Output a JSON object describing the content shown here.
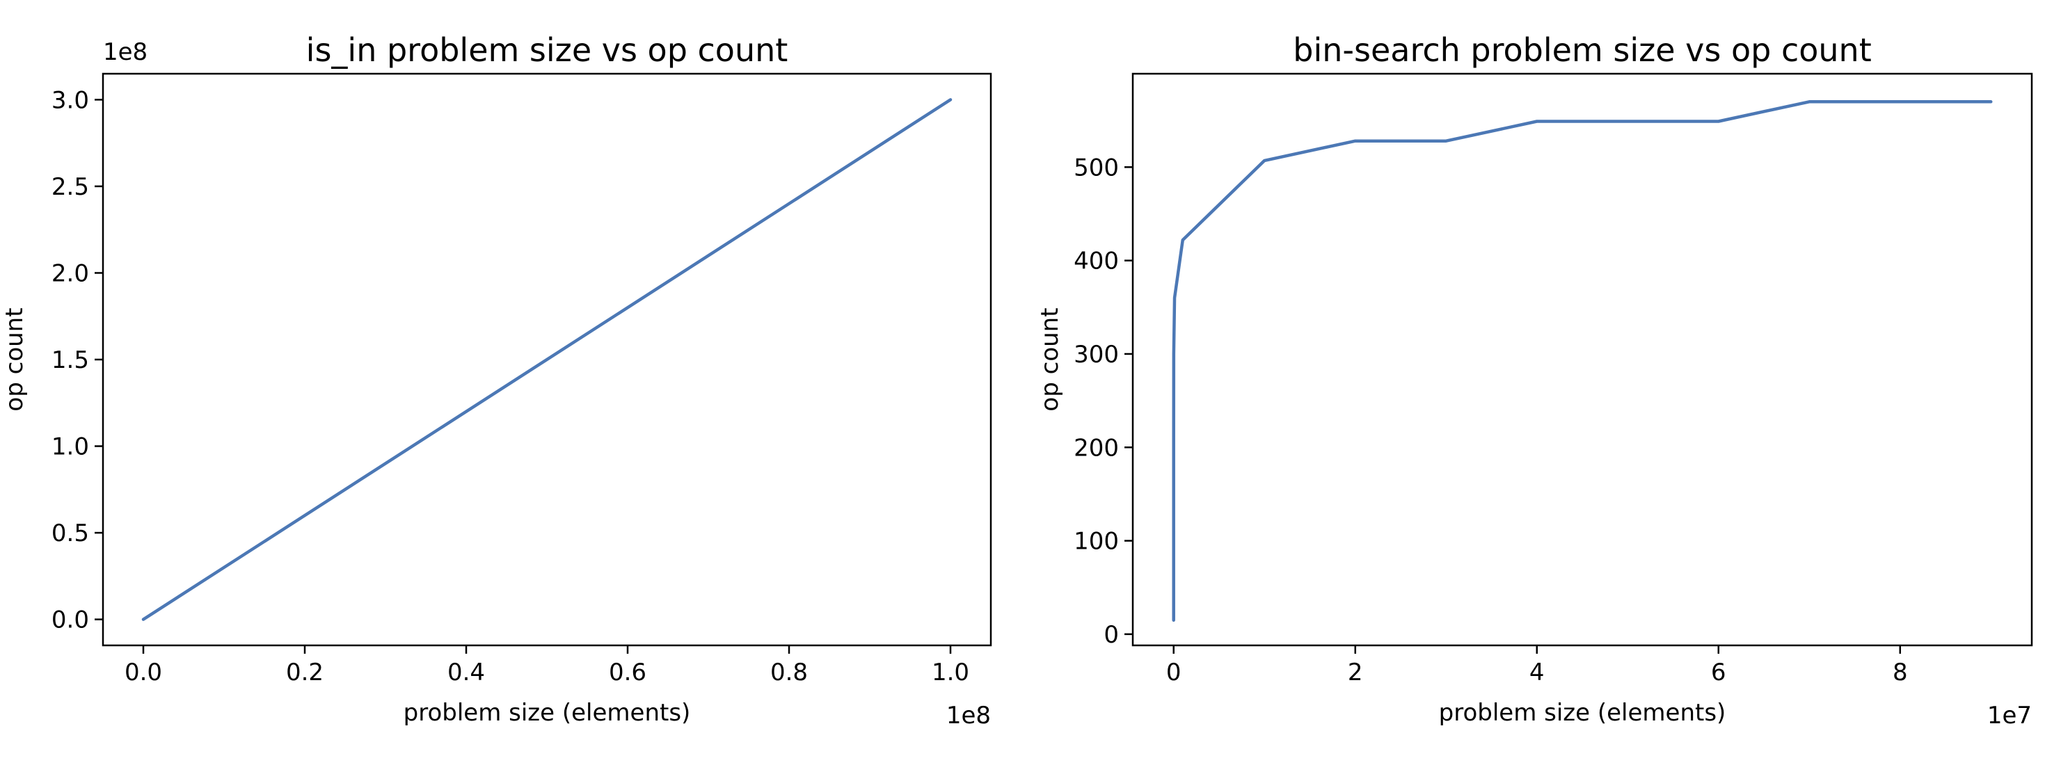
{
  "chart_data": [
    {
      "type": "line",
      "title": "is_in problem size vs op count",
      "xlabel": "problem size (elements)",
      "ylabel": "op count",
      "x_offset_label": "1e8",
      "y_offset_label": "1e8",
      "xlim": [
        -0.05,
        1.05
      ],
      "ylim": [
        -0.15,
        3.15
      ],
      "x_ticks": [
        0.0,
        0.2,
        0.4,
        0.6,
        0.8,
        1.0
      ],
      "x_tick_labels": [
        "0.0",
        "0.2",
        "0.4",
        "0.6",
        "0.8",
        "1.0"
      ],
      "y_ticks": [
        0.0,
        0.5,
        1.0,
        1.5,
        2.0,
        2.5,
        3.0
      ],
      "y_tick_labels": [
        "0.0",
        "0.5",
        "1.0",
        "1.5",
        "2.0",
        "2.5",
        "3.0"
      ],
      "grid": false,
      "series": [
        {
          "color": "#4c78b5",
          "x": [
            0.0,
            1.0
          ],
          "y": [
            0.0,
            3.0
          ]
        }
      ]
    },
    {
      "type": "line",
      "title": "bin-search problem size vs op count",
      "xlabel": "problem size (elements)",
      "ylabel": "op count",
      "x_offset_label": "1e7",
      "xlim": [
        -0.45,
        9.45
      ],
      "ylim": [
        -12,
        600
      ],
      "x_ticks": [
        0,
        2,
        4,
        6,
        8
      ],
      "x_tick_labels": [
        "0",
        "2",
        "4",
        "6",
        "8"
      ],
      "y_ticks": [
        0,
        100,
        200,
        300,
        400,
        500
      ],
      "y_tick_labels": [
        "0",
        "100",
        "200",
        "300",
        "400",
        "500"
      ],
      "grid": false,
      "series": [
        {
          "color": "#4c78b5",
          "x": [
            0,
            0.0001,
            0.001,
            0.01,
            0.1,
            1,
            2,
            3,
            4,
            5,
            6,
            7,
            8,
            9
          ],
          "y": [
            15,
            210,
            300,
            360,
            422,
            507,
            528,
            528,
            549,
            549,
            549,
            570,
            570,
            570
          ]
        }
      ]
    }
  ]
}
